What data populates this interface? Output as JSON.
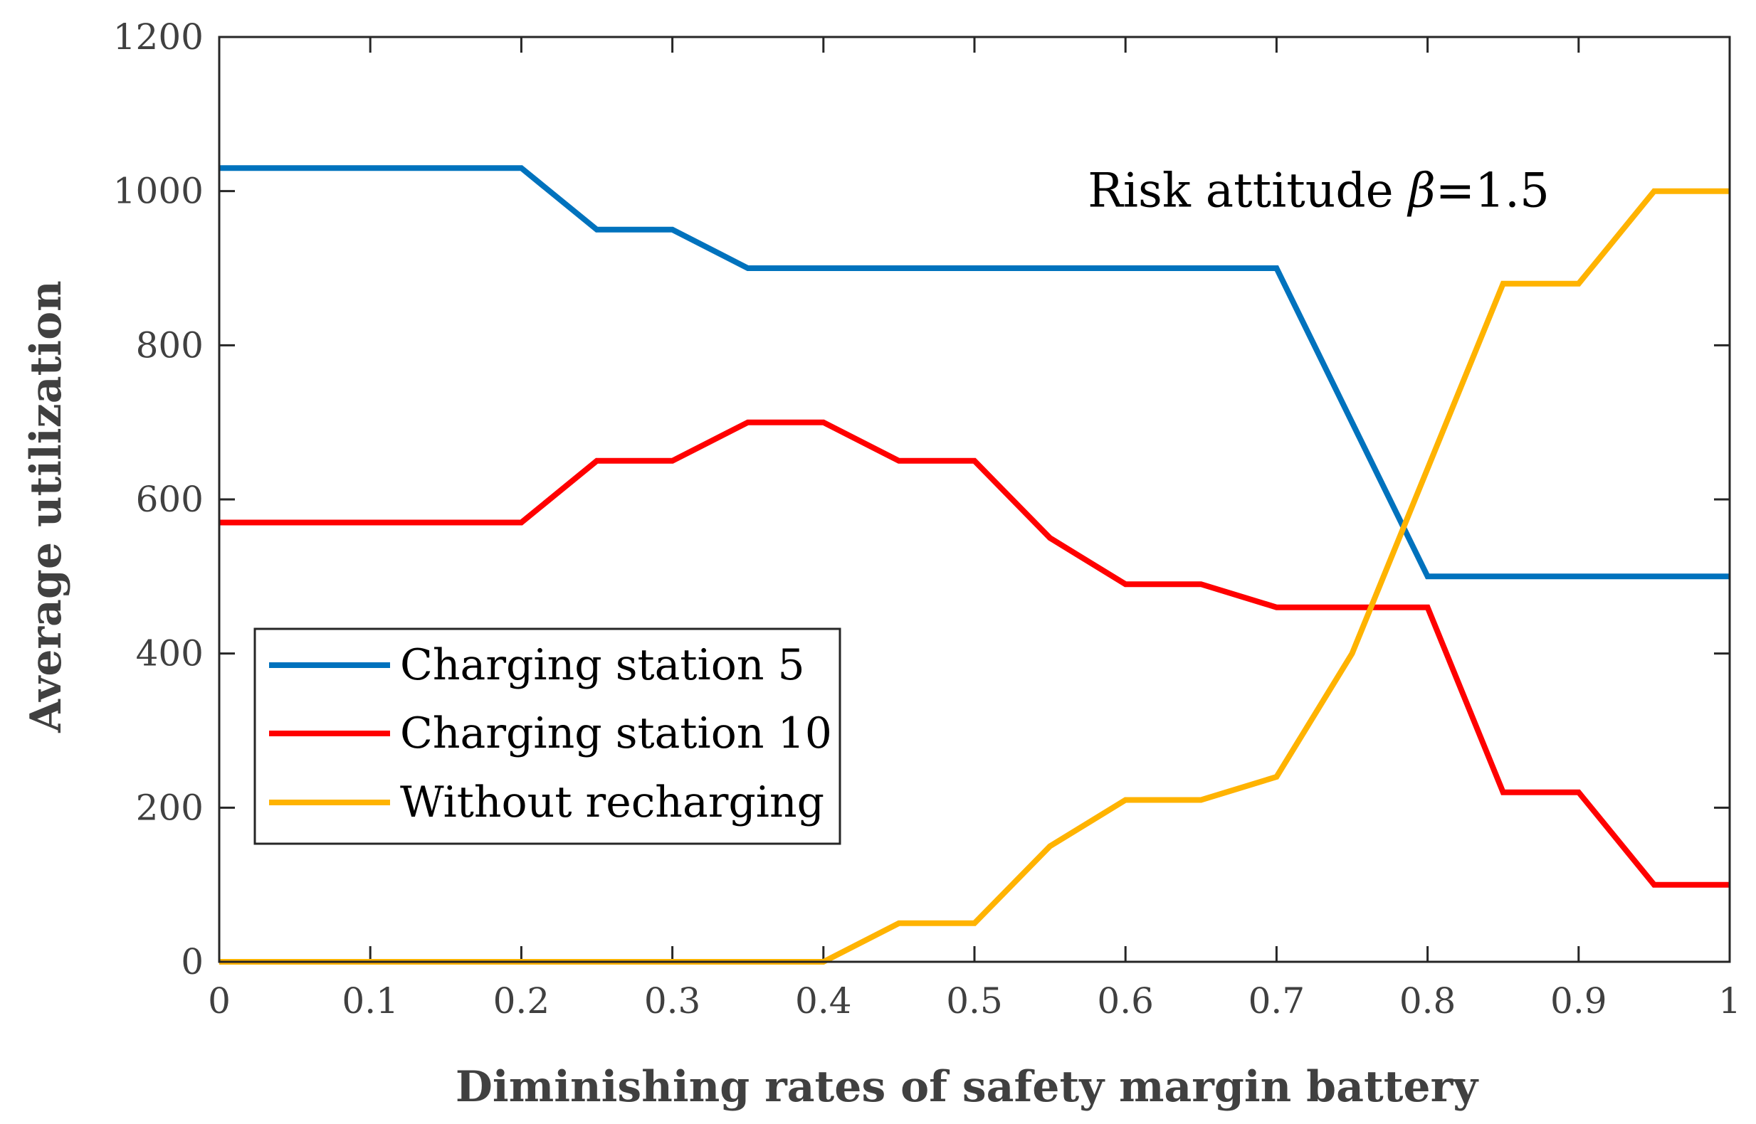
{
  "chart_data": {
    "type": "line",
    "title": "",
    "xlabel": "Diminishing rates of safety margin battery",
    "ylabel": "Average utilization",
    "xlim": [
      0,
      1
    ],
    "ylim": [
      0,
      1200
    ],
    "xticks": [
      0,
      0.1,
      0.2,
      0.3,
      0.4,
      0.5,
      0.6,
      0.7,
      0.8,
      0.9,
      1
    ],
    "xtick_labels": [
      "0",
      "0.1",
      "0.2",
      "0.3",
      "0.4",
      "0.5",
      "0.6",
      "0.7",
      "0.8",
      "0.9",
      "1"
    ],
    "yticks": [
      0,
      200,
      400,
      600,
      800,
      1000,
      1200
    ],
    "ytick_labels": [
      "0",
      "200",
      "400",
      "600",
      "800",
      "1000",
      "1200"
    ],
    "grid": false,
    "legend_position": "lower-left",
    "annotation": {
      "prefix": "Risk attitude ",
      "symbol": "β",
      "suffix": "=1.5",
      "position": [
        0.575,
        1000
      ]
    },
    "x": [
      0,
      0.05,
      0.1,
      0.15,
      0.2,
      0.25,
      0.3,
      0.35,
      0.4,
      0.45,
      0.5,
      0.55,
      0.6,
      0.65,
      0.7,
      0.75,
      0.8,
      0.85,
      0.9,
      0.95,
      1
    ],
    "series": [
      {
        "name": "Charging station 5",
        "color": "#0072BD",
        "values": [
          1030,
          1030,
          1030,
          1030,
          1030,
          950,
          950,
          900,
          900,
          900,
          900,
          900,
          900,
          900,
          900,
          700,
          500,
          500,
          500,
          500,
          500
        ]
      },
      {
        "name": "Charging station 10",
        "color": "#FF0000",
        "values": [
          570,
          570,
          570,
          570,
          570,
          650,
          650,
          700,
          700,
          650,
          650,
          550,
          490,
          490,
          460,
          460,
          460,
          220,
          220,
          100,
          100
        ]
      },
      {
        "name": "Without recharging",
        "color": "#FFB300",
        "values": [
          0,
          0,
          0,
          0,
          0,
          0,
          0,
          0,
          0,
          50,
          50,
          150,
          210,
          210,
          240,
          400,
          640,
          880,
          880,
          1000,
          1000
        ]
      }
    ]
  }
}
